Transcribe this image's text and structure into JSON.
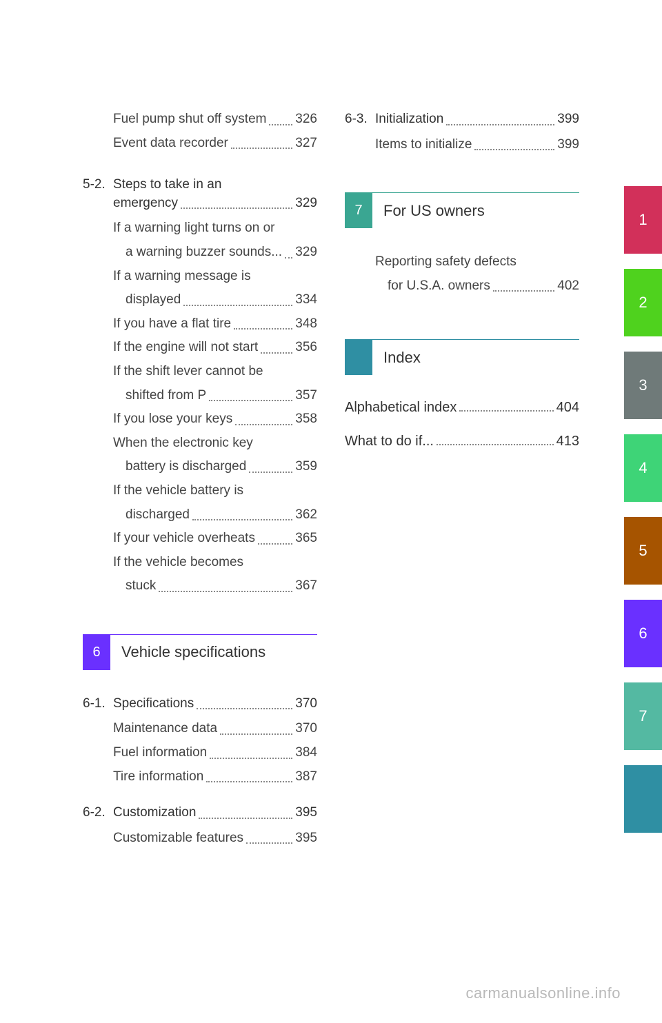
{
  "colors": {
    "chip6": "#6a30ff",
    "chip7": "#3aa692",
    "chipIndex": "#2f8fa3",
    "tab1": "#d2305a",
    "tab2": "#4fd21e",
    "tab3": "#6f7a79",
    "tab4": "#3ed477",
    "tab5": "#a65400",
    "tab6": "#6a30ff",
    "tab7": "#54b9a2",
    "tab8": "#2f8fa3",
    "bannerBorder6": "#6a30ff",
    "bannerBorder7": "#3aa692",
    "bannerBorderIndex": "#2f8fa3"
  },
  "left": {
    "pre": [
      {
        "label": "Fuel pump shut off system",
        "page": "326"
      },
      {
        "label": "Event data recorder",
        "page": "327"
      }
    ],
    "sec52": {
      "num": "5-2.",
      "label_l1": "Steps to take in an",
      "label_l2": "emergency",
      "page": "329",
      "items": [
        {
          "l1": "If a warning light turns on or",
          "l2": "a warning buzzer sounds...",
          "page": "329"
        },
        {
          "l1": "If a warning message is",
          "l2": "displayed",
          "page": "334"
        },
        {
          "l1": "If you have a flat tire",
          "page": "348"
        },
        {
          "l1": "If the engine will not start",
          "page": "356"
        },
        {
          "l1": "If the shift lever cannot be",
          "l2": "shifted from P",
          "page": "357"
        },
        {
          "l1": "If you lose your keys",
          "page": "358"
        },
        {
          "l1": "When the electronic key",
          "l2": "battery is discharged",
          "page": "359"
        },
        {
          "l1": "If the vehicle battery is",
          "l2": "discharged",
          "page": "362"
        },
        {
          "l1": "If your vehicle overheats",
          "page": "365"
        },
        {
          "l1": "If the vehicle becomes",
          "l2": "stuck",
          "page": "367"
        }
      ]
    },
    "banner6": {
      "num": "6",
      "title": "Vehicle specifications"
    },
    "sec61": {
      "num": "6-1.",
      "label": "Specifications",
      "page": "370",
      "items": [
        {
          "l1": "Maintenance data",
          "page": "370"
        },
        {
          "l1": "Fuel information",
          "page": "384"
        },
        {
          "l1": "Tire information",
          "page": "387"
        }
      ]
    },
    "sec62": {
      "num": "6-2.",
      "label": "Customization",
      "page": "395",
      "items": [
        {
          "l1": "Customizable features",
          "page": "395"
        }
      ]
    }
  },
  "right": {
    "sec63": {
      "num": "6-3.",
      "label": "Initialization",
      "page": "399",
      "items": [
        {
          "l1": "Items to initialize",
          "page": "399"
        }
      ]
    },
    "banner7": {
      "num": "7",
      "title": "For US owners"
    },
    "sec7items": [
      {
        "l1": "Reporting safety defects",
        "l2": "for U.S.A. owners",
        "page": "402"
      }
    ],
    "bannerIndex": {
      "title": "Index"
    },
    "bold": [
      {
        "label": "Alphabetical index",
        "page": "404"
      },
      {
        "label": "What to do if...",
        "page": "413"
      }
    ]
  },
  "tabs": [
    "1",
    "2",
    "3",
    "4",
    "5",
    "6",
    "7",
    ""
  ],
  "footer": "carmanualsonline.info"
}
